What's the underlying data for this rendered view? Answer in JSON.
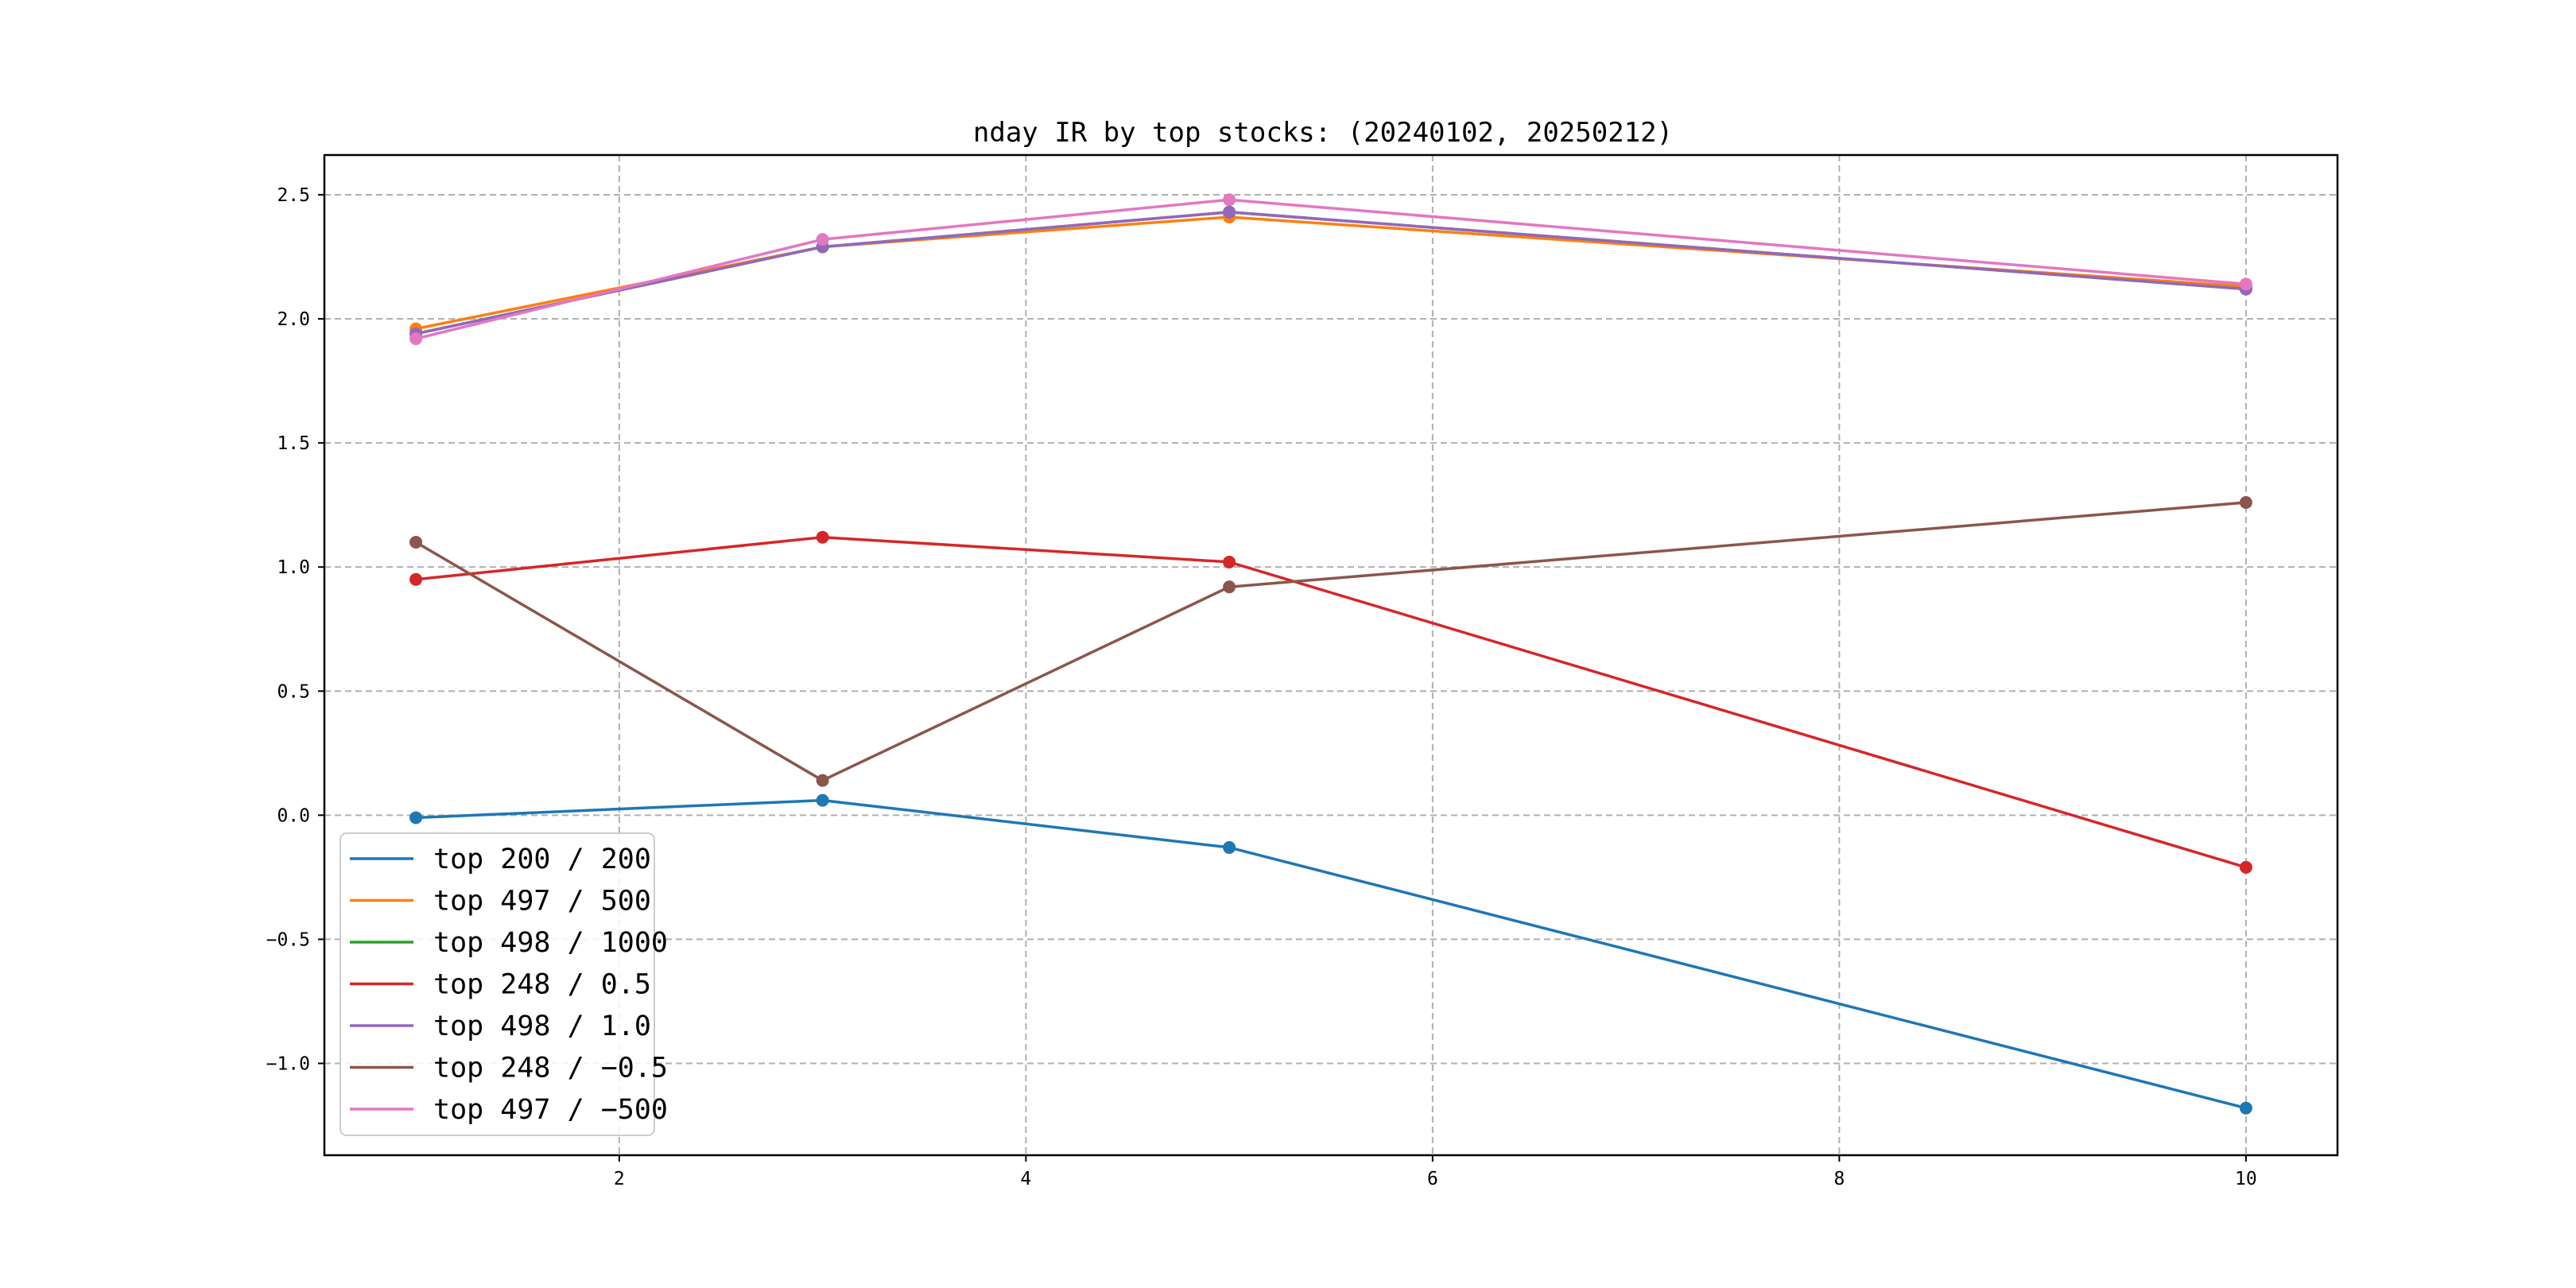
{
  "chart_data": {
    "type": "line",
    "title": "nday IR by top stocks: (20240102, 20250212)",
    "xlabel": "",
    "ylabel": "",
    "xlim": [
      0.55,
      10.45
    ],
    "ylim": [
      -1.37,
      2.66
    ],
    "x_ticks": [
      2,
      4,
      6,
      8,
      10
    ],
    "y_ticks": [
      -1.0,
      -0.5,
      0.0,
      0.5,
      1.0,
      1.5,
      2.0,
      2.5
    ],
    "x_tick_labels": [
      "2",
      "4",
      "6",
      "8",
      "10"
    ],
    "y_tick_labels": [
      "−1.0",
      "−0.5",
      "0.0",
      "0.5",
      "1.0",
      "1.5",
      "2.0",
      "2.5"
    ],
    "grid": true,
    "legend_position": "lower-left",
    "x": [
      1,
      3,
      5,
      10
    ],
    "series": [
      {
        "name": "top 200 / 200",
        "color": "#1f77b4",
        "values": [
          -0.01,
          0.06,
          -0.13,
          -1.18
        ]
      },
      {
        "name": "top 497 / 500",
        "color": "#ff7f0e",
        "values": [
          1.96,
          2.29,
          2.41,
          2.13
        ]
      },
      {
        "name": "top 498 / 1000",
        "color": "#2ca02c",
        "values": [
          1.94,
          2.29,
          2.43,
          2.12
        ]
      },
      {
        "name": "top 248 / 0.5",
        "color": "#d62728",
        "values": [
          0.95,
          1.12,
          1.02,
          -0.21
        ]
      },
      {
        "name": "top 498 / 1.0",
        "color": "#9467bd",
        "values": [
          1.94,
          2.29,
          2.43,
          2.12
        ]
      },
      {
        "name": "top 248 / −0.5",
        "color": "#8c564b",
        "values": [
          1.1,
          0.14,
          0.92,
          1.26
        ]
      },
      {
        "name": "top 497 / −500",
        "color": "#e377c2",
        "values": [
          1.92,
          2.32,
          2.48,
          2.14
        ]
      }
    ]
  }
}
